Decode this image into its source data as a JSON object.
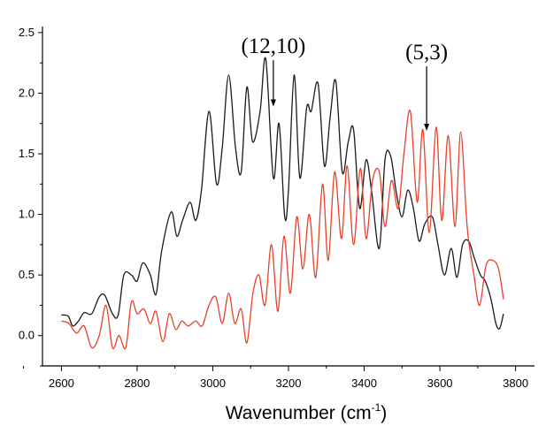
{
  "chart_data": {
    "type": "line",
    "xlabel_main": "Wavenumber (cm",
    "xlabel_sup": "-1",
    "xlabel_close": ")",
    "ylabel": "",
    "xlim": [
      2550,
      3850
    ],
    "ylim": [
      -0.25,
      2.55
    ],
    "x_ticks": [
      2600,
      2800,
      3000,
      3200,
      3400,
      3600,
      3800
    ],
    "x_tick_labels": [
      "2600",
      "2800",
      "3000",
      "3200",
      "3400",
      "3600",
      "3800"
    ],
    "y_ticks": [
      0.0,
      0.5,
      1.0,
      1.5,
      2.0,
      2.5
    ],
    "y_tick_labels": [
      "0.0",
      "0.5",
      "1.0",
      "1.5",
      "2.0",
      "2.5"
    ],
    "grid": false,
    "series": [
      {
        "color": "#1a1a1a",
        "x": [
          2600,
          2618,
          2630,
          2645,
          2660,
          2680,
          2700,
          2715,
          2735,
          2750,
          2765,
          2785,
          2800,
          2815,
          2835,
          2850,
          2865,
          2890,
          2905,
          2920,
          2940,
          2955,
          2970,
          2990,
          3010,
          3025,
          3042,
          3060,
          3075,
          3090,
          3105,
          3125,
          3140,
          3160,
          3175,
          3190,
          3200,
          3215,
          3230,
          3248,
          3260,
          3278,
          3295,
          3310,
          3325,
          3342,
          3358,
          3372,
          3388,
          3405,
          3420,
          3440,
          3455,
          3470,
          3485,
          3500,
          3515,
          3530,
          3545,
          3560,
          3580,
          3595,
          3612,
          3630,
          3645,
          3660,
          3676,
          3690,
          3707,
          3720,
          3735,
          3748,
          3758,
          3768
        ],
        "y": [
          0.17,
          0.16,
          0.08,
          0.12,
          0.19,
          0.18,
          0.32,
          0.33,
          0.18,
          0.17,
          0.5,
          0.5,
          0.45,
          0.6,
          0.5,
          0.34,
          0.7,
          1.02,
          0.82,
          0.95,
          1.1,
          0.95,
          1.2,
          1.85,
          1.25,
          1.55,
          2.15,
          1.55,
          1.35,
          2.05,
          1.6,
          1.85,
          2.28,
          1.3,
          1.75,
          0.98,
          1.2,
          2.15,
          1.3,
          1.88,
          1.85,
          2.08,
          1.4,
          1.8,
          2.1,
          1.35,
          1.6,
          1.7,
          1.05,
          1.45,
          1.18,
          0.72,
          1.45,
          1.48,
          1.18,
          0.98,
          1.2,
          1.05,
          0.78,
          0.92,
          0.98,
          0.75,
          0.5,
          0.72,
          0.48,
          0.75,
          0.78,
          0.65,
          0.5,
          0.45,
          0.3,
          0.1,
          0.06,
          0.18
        ]
      },
      {
        "color": "#e8402a",
        "x": [
          2600,
          2620,
          2640,
          2660,
          2680,
          2700,
          2718,
          2735,
          2752,
          2770,
          2785,
          2800,
          2818,
          2835,
          2850,
          2868,
          2885,
          2902,
          2918,
          2935,
          2955,
          2972,
          2990,
          3008,
          3025,
          3042,
          3058,
          3075,
          3090,
          3106,
          3122,
          3138,
          3155,
          3172,
          3188,
          3205,
          3222,
          3238,
          3255,
          3272,
          3290,
          3305,
          3322,
          3340,
          3355,
          3372,
          3390,
          3405,
          3422,
          3440,
          3455,
          3472,
          3490,
          3505,
          3522,
          3540,
          3555,
          3572,
          3590,
          3605,
          3622,
          3640,
          3655,
          3672,
          3690,
          3705,
          3722,
          3740,
          3755,
          3768
        ],
        "y": [
          0.12,
          0.1,
          0.02,
          0.08,
          -0.1,
          0.0,
          0.25,
          -0.1,
          0.0,
          -0.1,
          0.28,
          0.18,
          0.22,
          0.1,
          0.2,
          -0.05,
          0.18,
          0.05,
          0.12,
          0.08,
          0.12,
          0.08,
          0.25,
          0.32,
          0.1,
          0.35,
          0.1,
          0.22,
          -0.06,
          0.35,
          0.5,
          0.25,
          0.75,
          0.2,
          0.82,
          0.35,
          0.98,
          0.55,
          1.0,
          0.48,
          1.25,
          0.62,
          1.35,
          0.8,
          1.4,
          0.75,
          1.38,
          0.8,
          1.28,
          1.35,
          0.9,
          1.28,
          1.05,
          1.5,
          1.85,
          1.1,
          1.7,
          0.85,
          1.72,
          0.95,
          1.65,
          0.9,
          1.68,
          0.9,
          0.5,
          0.25,
          0.58,
          0.62,
          0.55,
          0.3
        ]
      }
    ],
    "annotations": [
      {
        "text": "(12,10)",
        "x": 3160,
        "y": 2.33,
        "arrow_to": [
          3160,
          1.89
        ]
      },
      {
        "text": "(5,3)",
        "x": 3565,
        "y": 2.28,
        "arrow_to": [
          3565,
          1.69
        ]
      }
    ]
  }
}
